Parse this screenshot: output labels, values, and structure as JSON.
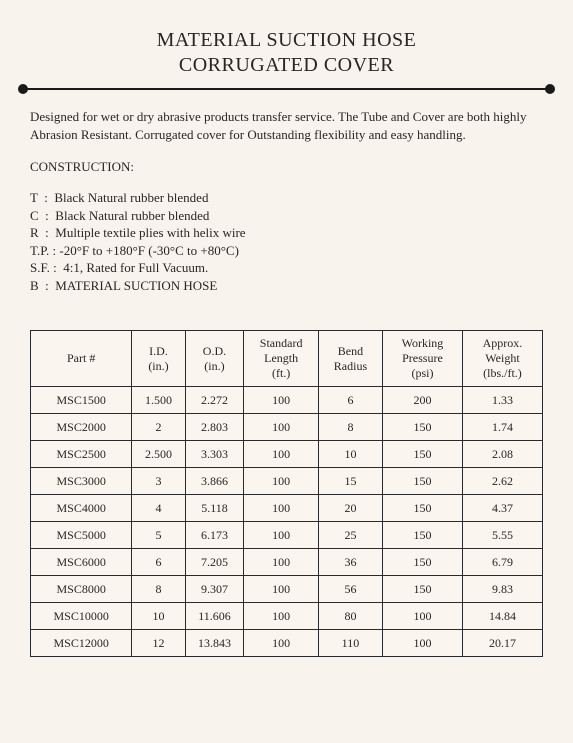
{
  "title": {
    "line1": "MATERIAL SUCTION HOSE",
    "line2": "CORRUGATED COVER"
  },
  "description": "Designed for wet or dry abrasive products transfer service. The Tube and Cover are both highly Abrasion Resistant. Corrugated cover for Outstanding flexibility and easy handling.",
  "construction_label": "CONSTRUCTION:",
  "construction": [
    "T  :  Black Natural rubber blended",
    "C  :  Black Natural rubber blended",
    "R  :  Multiple textile plies with helix wire",
    "T.P. : -20°F to +180°F (-30°C to +80°C)",
    "S.F. :  4:1, Rated for Full Vacuum.",
    "B  :  MATERIAL SUCTION HOSE"
  ],
  "spec_table": {
    "columns": [
      {
        "key": "part",
        "label_l1": "Part #",
        "label_l2": "",
        "width_class": "col-part"
      },
      {
        "key": "id",
        "label_l1": "I.D.",
        "label_l2": "(in.)",
        "width_class": "col-id"
      },
      {
        "key": "od",
        "label_l1": "O.D.",
        "label_l2": "(in.)",
        "width_class": "col-od"
      },
      {
        "key": "len",
        "label_l1": "Standard",
        "label_l2": "Length",
        "label_l3": "(ft.)",
        "width_class": "col-len"
      },
      {
        "key": "bend",
        "label_l1": "Bend",
        "label_l2": "Radius",
        "width_class": "col-bend"
      },
      {
        "key": "wp",
        "label_l1": "Working",
        "label_l2": "Pressure",
        "label_l3": "(psi)",
        "width_class": "col-wp"
      },
      {
        "key": "wt",
        "label_l1": "Approx.",
        "label_l2": "Weight",
        "label_l3": "(lbs./ft.)",
        "width_class": "col-wt"
      }
    ],
    "rows": [
      {
        "part": "MSC1500",
        "id": "1.500",
        "od": "2.272",
        "len": "100",
        "bend": "6",
        "wp": "200",
        "wt": "1.33"
      },
      {
        "part": "MSC2000",
        "id": "2",
        "od": "2.803",
        "len": "100",
        "bend": "8",
        "wp": "150",
        "wt": "1.74"
      },
      {
        "part": "MSC2500",
        "id": "2.500",
        "od": "3.303",
        "len": "100",
        "bend": "10",
        "wp": "150",
        "wt": "2.08"
      },
      {
        "part": "MSC3000",
        "id": "3",
        "od": "3.866",
        "len": "100",
        "bend": "15",
        "wp": "150",
        "wt": "2.62"
      },
      {
        "part": "MSC4000",
        "id": "4",
        "od": "5.118",
        "len": "100",
        "bend": "20",
        "wp": "150",
        "wt": "4.37"
      },
      {
        "part": "MSC5000",
        "id": "5",
        "od": "6.173",
        "len": "100",
        "bend": "25",
        "wp": "150",
        "wt": "5.55"
      },
      {
        "part": "MSC6000",
        "id": "6",
        "od": "7.205",
        "len": "100",
        "bend": "36",
        "wp": "150",
        "wt": "6.79"
      },
      {
        "part": "MSC8000",
        "id": "8",
        "od": "9.307",
        "len": "100",
        "bend": "56",
        "wp": "150",
        "wt": "9.83"
      },
      {
        "part": "MSC10000",
        "id": "10",
        "od": "11.606",
        "len": "100",
        "bend": "80",
        "wp": "100",
        "wt": "14.84"
      },
      {
        "part": "MSC12000",
        "id": "12",
        "od": "13.843",
        "len": "100",
        "bend": "110",
        "wp": "100",
        "wt": "20.17"
      }
    ]
  },
  "styling": {
    "page_background": "#f9f3ed",
    "text_color": "#292522",
    "border_color": "#2a2a2a",
    "rule_color": "#1a1a1a",
    "font_family": "Times New Roman",
    "title_fontsize_pt": 15,
    "body_fontsize_pt": 10,
    "table_fontsize_pt": 9
  }
}
